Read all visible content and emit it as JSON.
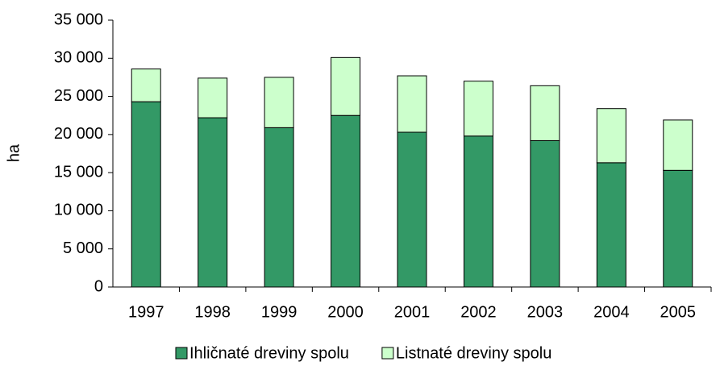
{
  "chart_data": {
    "type": "stacked-bar",
    "y_label": "ha",
    "categories": [
      "1997",
      "1998",
      "1999",
      "2000",
      "2001",
      "2002",
      "2003",
      "2004",
      "2005"
    ],
    "series": [
      {
        "name": "Ihličnaté dreviny spolu",
        "color": "#339966",
        "values": [
          24300,
          22200,
          20900,
          22500,
          20300,
          19800,
          19200,
          16300,
          15300
        ]
      },
      {
        "name": "Listnaté dreviny spolu",
        "color": "#ccffcc",
        "values": [
          4300,
          5200,
          6600,
          7600,
          7400,
          7200,
          7200,
          7100,
          6600
        ]
      }
    ],
    "ylim": [
      0,
      35000
    ],
    "yticks": [
      0,
      {
        "value": 5000,
        "label": "5 000"
      },
      {
        "value": 10000,
        "label": "10 000"
      },
      {
        "value": 15000,
        "label": "15 000"
      },
      {
        "value": 20000,
        "label": "20 000"
      },
      {
        "value": 25000,
        "label": "25 000"
      },
      {
        "value": 30000,
        "label": "30 000"
      },
      {
        "value": 35000,
        "label": "35 000"
      }
    ],
    "legend": "bottom",
    "grid": false
  }
}
